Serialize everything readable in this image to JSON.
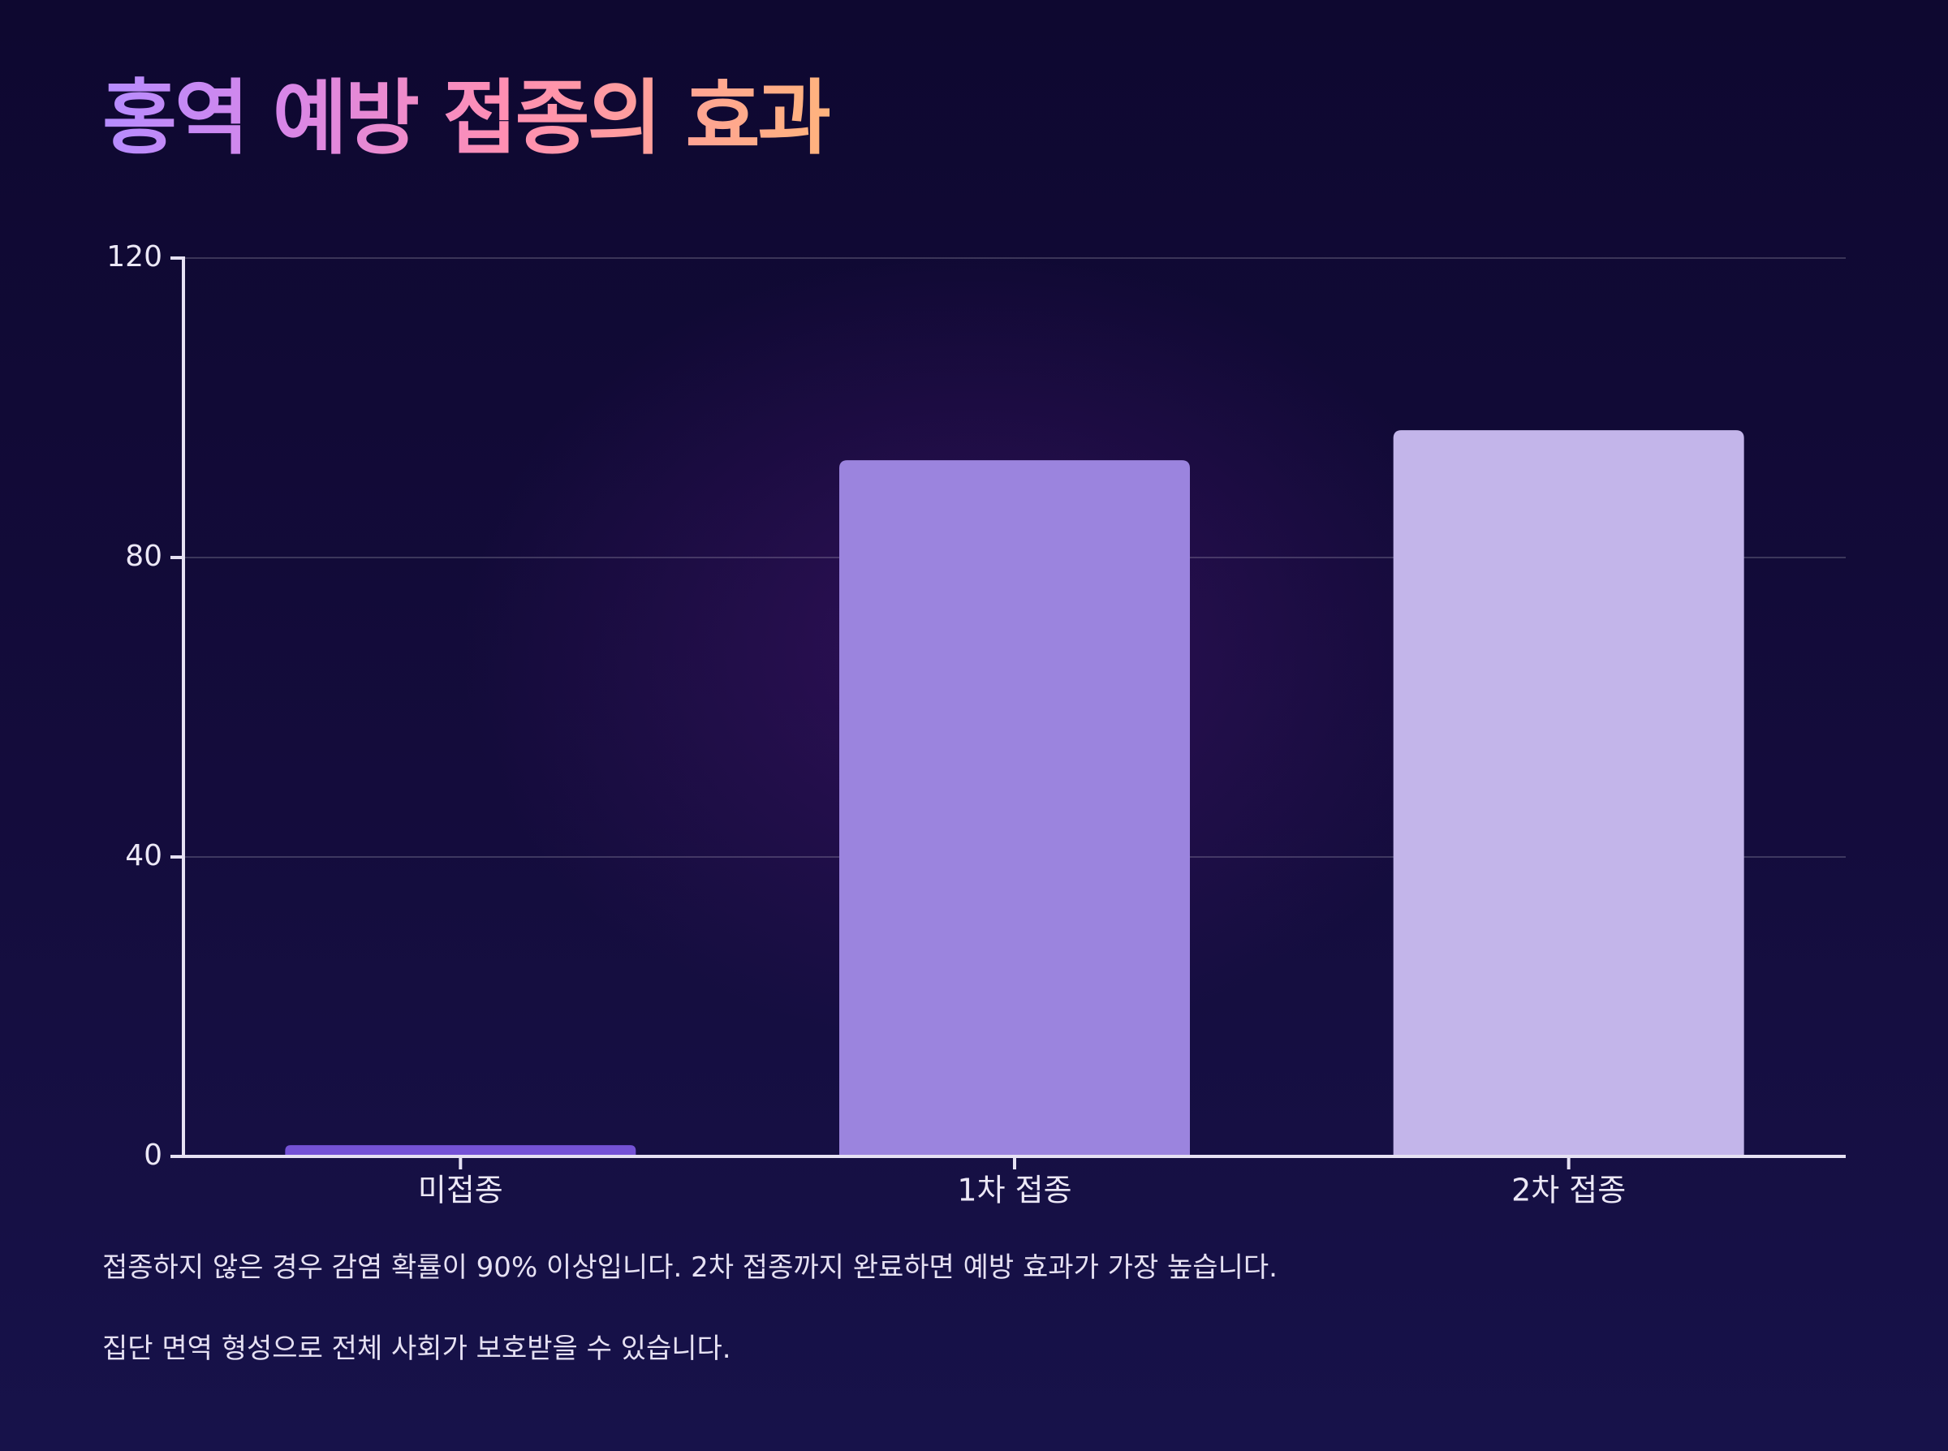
{
  "title": "홍역 예방 접종의 효과",
  "notes": [
    "접종하지 않은 경우 감염 확률이 90% 이상입니다. 2차 접종까지 완료하면 예방 효과가 가장 높습니다.",
    "집단 면역 형성으로 전체 사회가 보호받을 수 있습니다."
  ],
  "chart_data": {
    "type": "bar",
    "categories": [
      "미접종",
      "1차 접종",
      "2차 접종"
    ],
    "values": [
      1.5,
      93,
      97
    ],
    "colors": [
      "#7552d6",
      "#9b84de",
      "#c3b5ea"
    ],
    "ylim": [
      0,
      120
    ],
    "yticks": [
      0,
      40,
      80,
      120
    ],
    "grid": true,
    "legend": "none"
  }
}
